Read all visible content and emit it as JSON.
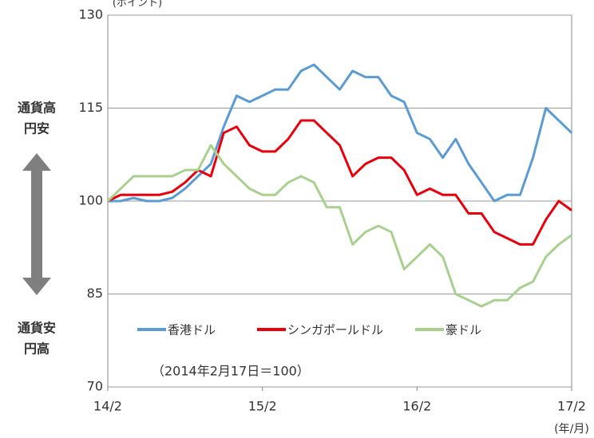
{
  "chart_data": {
    "type": "line",
    "y_unit": "(ポイント)",
    "x_unit": "(年/月)",
    "annotation": "（2014年2月17日＝100）",
    "side_labels": {
      "top": [
        "通貨高",
        "円安"
      ],
      "bottom": [
        "通貨安",
        "円高"
      ]
    },
    "x": [
      0,
      1,
      2,
      3,
      4,
      5,
      6,
      7,
      8,
      9,
      10,
      11,
      12,
      13,
      14,
      15,
      16,
      17,
      18,
      19,
      20,
      21,
      22,
      23,
      24,
      25,
      26,
      27,
      28,
      29,
      30,
      31,
      32,
      33,
      34,
      35,
      36
    ],
    "xlim": [
      0,
      36
    ],
    "xticks": [
      {
        "value": 0,
        "label": "14/2"
      },
      {
        "value": 12,
        "label": "15/2"
      },
      {
        "value": 24,
        "label": "16/2"
      },
      {
        "value": 36,
        "label": "17/2"
      }
    ],
    "ylim": [
      70,
      130
    ],
    "yticks": [
      70,
      85,
      100,
      115,
      130
    ],
    "grid": true,
    "series": [
      {
        "name": "香港ドル",
        "color": "#5b9bd5",
        "values": [
          100,
          100,
          100.5,
          100,
          100,
          100.5,
          102,
          104,
          106,
          112,
          117,
          116,
          117,
          118,
          118,
          121,
          122,
          120,
          118,
          121,
          120,
          120,
          117,
          116,
          111,
          110,
          107,
          110,
          106,
          103,
          100,
          101,
          101,
          107,
          115,
          113,
          111
        ]
      },
      {
        "name": "シンガポールドル",
        "color": "#e8000b",
        "values": [
          100,
          101,
          101,
          101,
          101,
          101.5,
          103,
          105,
          104,
          111,
          112,
          109,
          108,
          108,
          110,
          113,
          113,
          111,
          109,
          104,
          106,
          107,
          107,
          105,
          101,
          102,
          101,
          101,
          98,
          98,
          95,
          94,
          93,
          93,
          97,
          100,
          98.5
        ]
      },
      {
        "name": "豪ドル",
        "color": "#a9d18e",
        "values": [
          100,
          102,
          104,
          104,
          104,
          104,
          105,
          105,
          109,
          106,
          104,
          102,
          101,
          101,
          103,
          104,
          103,
          99,
          99,
          93,
          95,
          96,
          95,
          89,
          91,
          93,
          91,
          85,
          84,
          83,
          84,
          84,
          86,
          87,
          91,
          93,
          94.5
        ]
      }
    ]
  }
}
